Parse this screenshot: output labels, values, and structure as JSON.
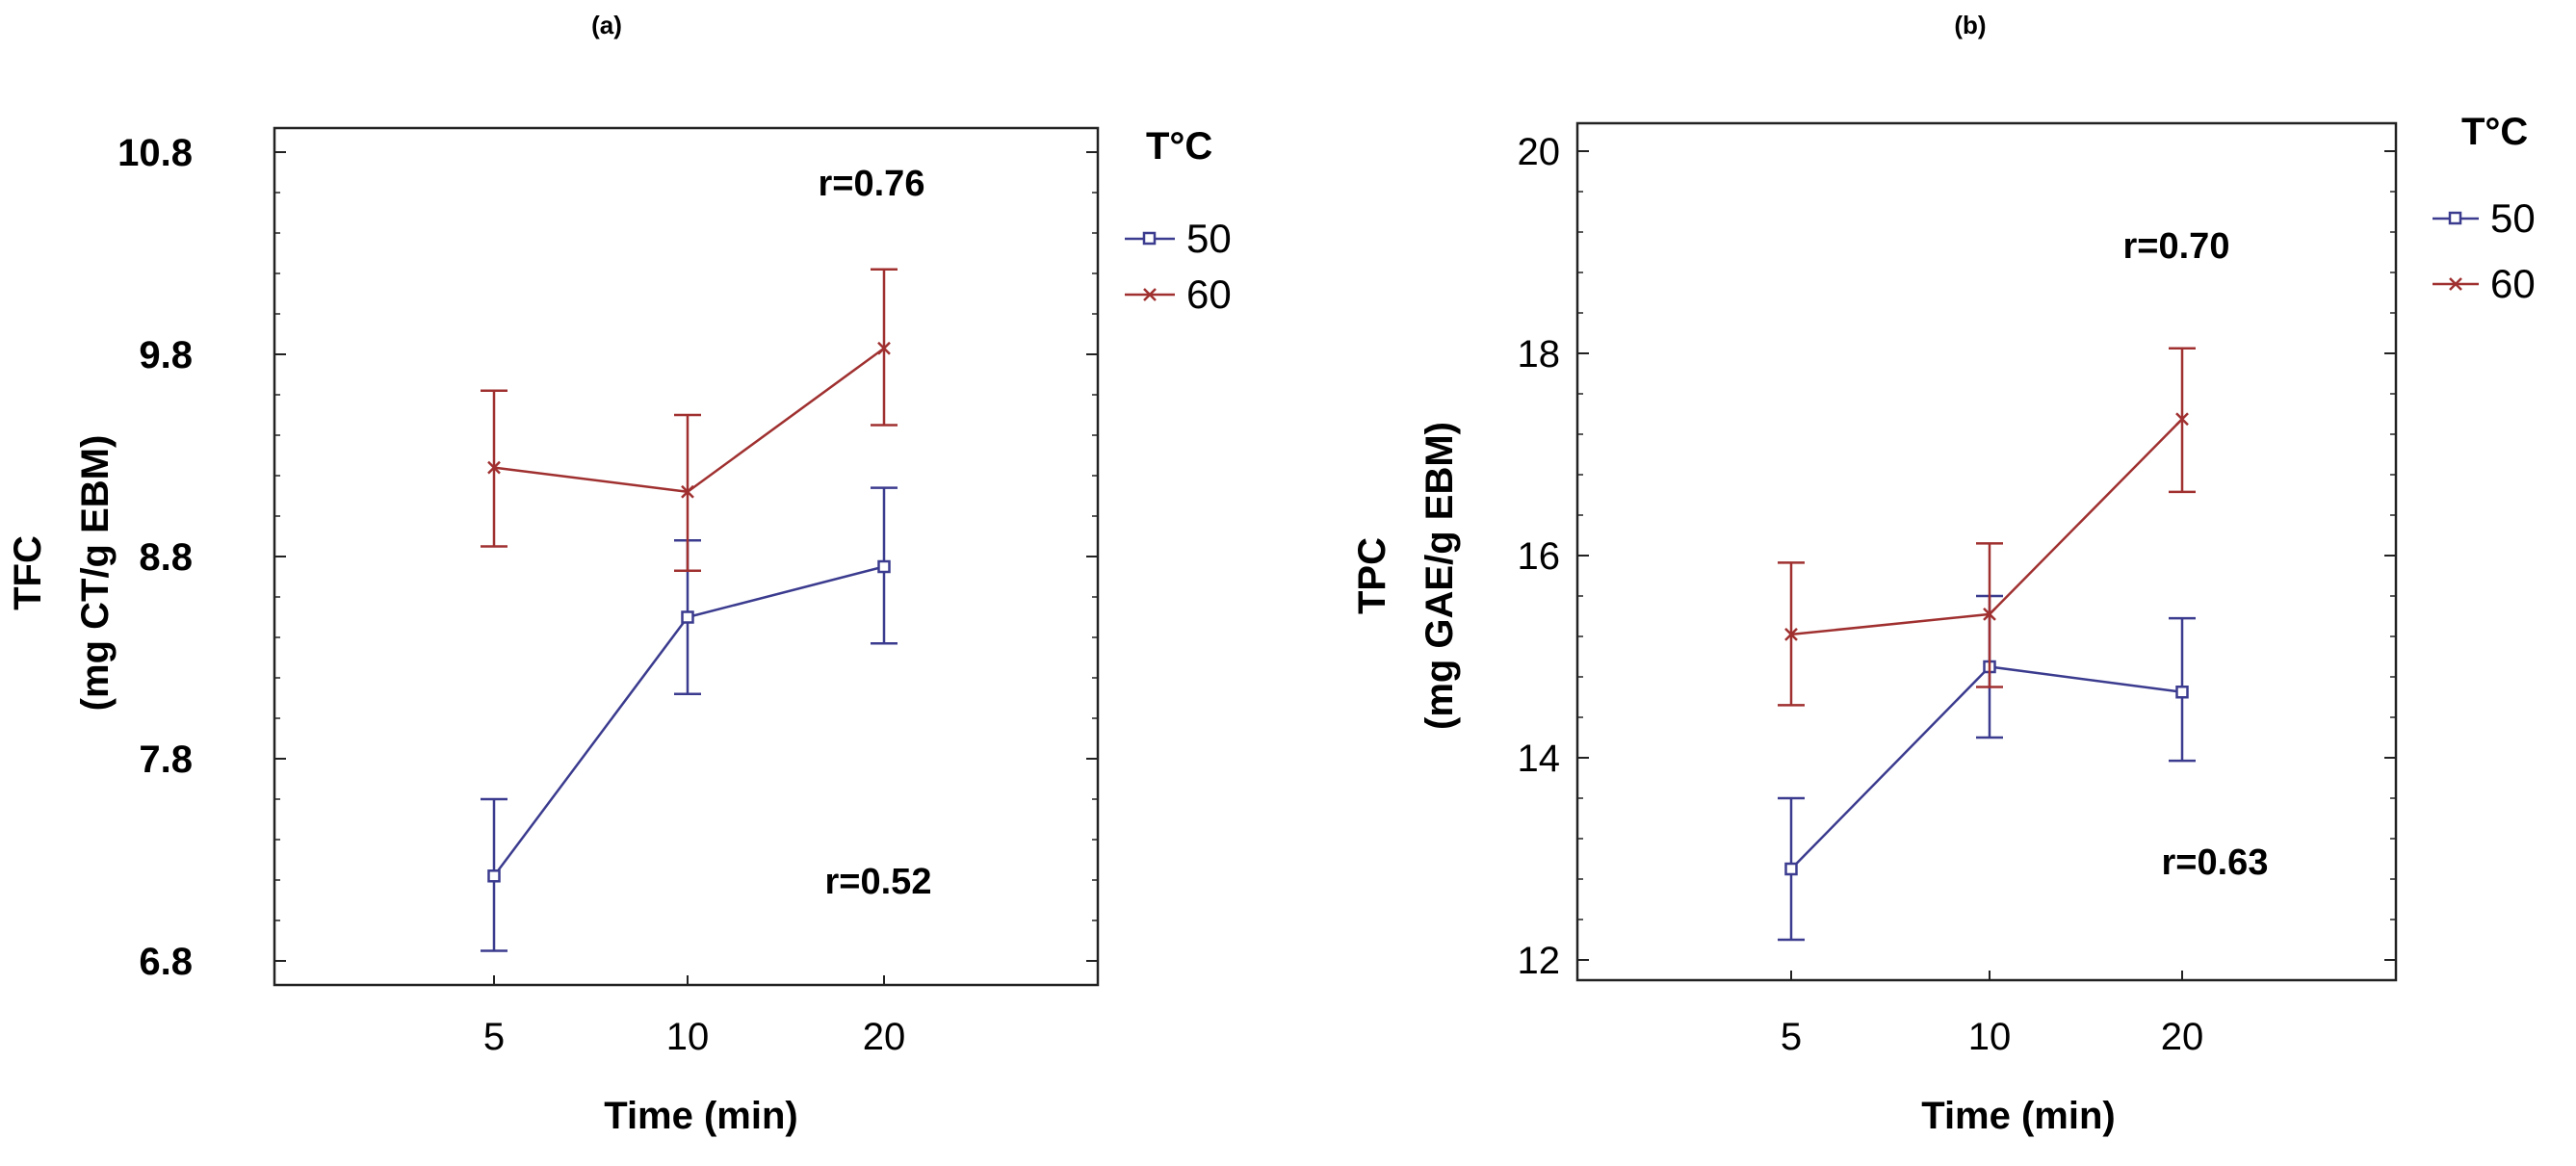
{
  "chart_data": [
    {
      "type": "line",
      "panel_label": "(a)",
      "xlabel": "Time (min)",
      "ylabel_line1": "TFC",
      "ylabel_line2": "(mg CT/g EBM)",
      "categories": [
        "5",
        "10",
        "20"
      ],
      "ylim": [
        6.7,
        10.9
      ],
      "yticks": [
        6.8,
        7.8,
        8.8,
        9.8,
        10.8
      ],
      "ytick_labels": [
        "6.8",
        "7.8",
        "8.8",
        "9.8",
        "10.8"
      ],
      "legend_title": "T°C",
      "series": [
        {
          "name": "50",
          "color": "#3b3b8f",
          "marker": "square",
          "values": [
            7.22,
            8.5,
            8.75
          ],
          "err_low": [
            6.85,
            8.12,
            8.37
          ],
          "err_high": [
            7.6,
            8.88,
            9.14
          ]
        },
        {
          "name": "60",
          "color": "#a03030",
          "marker": "x",
          "values": [
            9.24,
            9.12,
            9.83
          ],
          "err_low": [
            8.85,
            8.73,
            9.45
          ],
          "err_high": [
            9.62,
            9.5,
            10.22
          ]
        }
      ],
      "annotations": [
        {
          "text": "r=0.76",
          "series": "60"
        },
        {
          "text": "r=0.52",
          "series": "50"
        }
      ]
    },
    {
      "type": "line",
      "panel_label": "(b)",
      "xlabel": "Time (min)",
      "ylabel_line1": "TPC",
      "ylabel_line2": "(mg GAE/g EBM)",
      "categories": [
        "5",
        "10",
        "20"
      ],
      "ylim": [
        11.8,
        20.2
      ],
      "yticks": [
        12,
        14,
        16,
        18,
        20
      ],
      "ytick_labels": [
        "12",
        "14",
        "16",
        "18",
        "20"
      ],
      "legend_title": "T°C",
      "series": [
        {
          "name": "50",
          "color": "#3b3b8f",
          "marker": "square",
          "values": [
            12.9,
            14.9,
            14.65
          ],
          "err_low": [
            12.2,
            14.2,
            13.97
          ],
          "err_high": [
            13.6,
            15.6,
            15.38
          ]
        },
        {
          "name": "60",
          "color": "#a03030",
          "marker": "x",
          "values": [
            15.22,
            15.42,
            17.35
          ],
          "err_low": [
            14.52,
            14.7,
            16.63
          ],
          "err_high": [
            15.93,
            16.12,
            18.05
          ]
        }
      ],
      "annotations": [
        {
          "text": "r=0.70",
          "series": "60"
        },
        {
          "text": "r=0.63",
          "series": "50"
        }
      ]
    }
  ]
}
